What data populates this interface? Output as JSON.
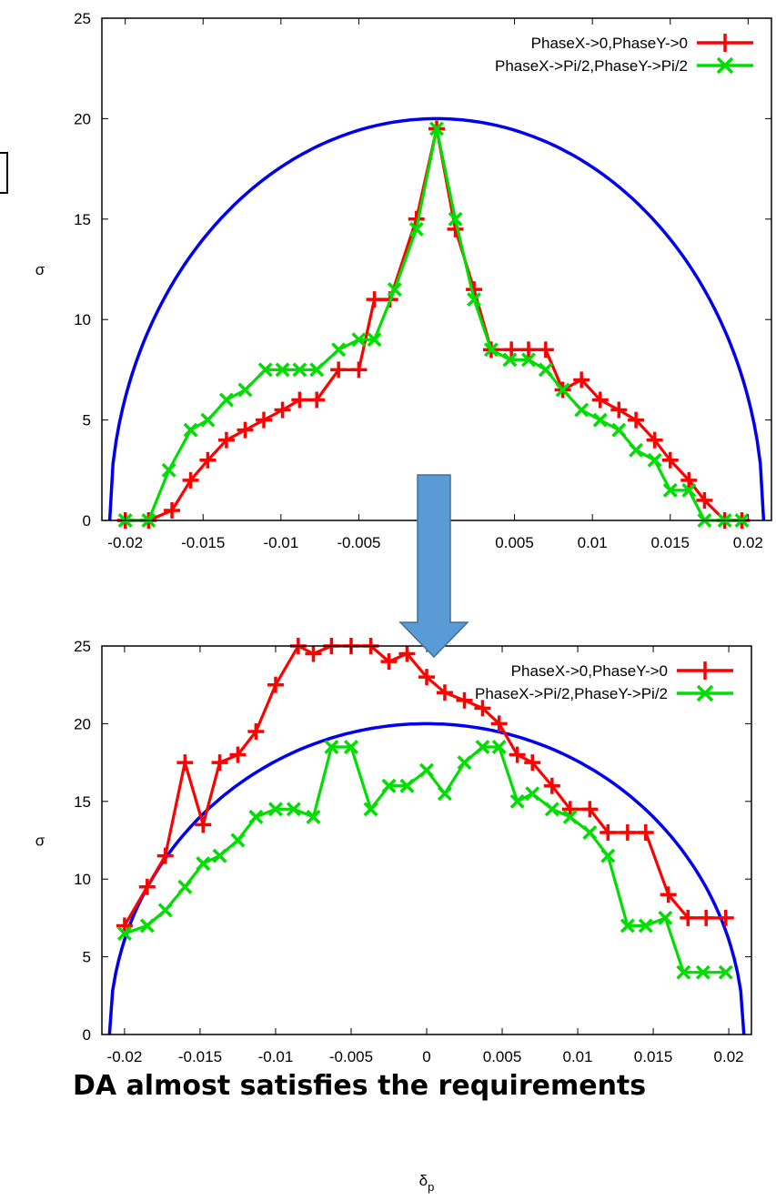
{
  "chart_data": [
    {
      "type": "line",
      "xlabel": "",
      "ylabel": "σ",
      "xlim": [
        -0.0215,
        0.0215
      ],
      "ylim": [
        0,
        25
      ],
      "x_ticks": [
        -0.02,
        -0.015,
        -0.01,
        -0.005,
        0.005,
        0.01,
        0.015,
        0.02
      ],
      "x_tick_labels": [
        "-0.02",
        "-0.015",
        "-0.01",
        "-0.005",
        "0.005",
        "0.01",
        "0.015",
        "0.02"
      ],
      "y_ticks": [
        0,
        5,
        10,
        15,
        20,
        25
      ],
      "y_tick_labels": [
        "0",
        "5",
        "10",
        "15",
        "20",
        "25"
      ],
      "grid": false,
      "legend_position": "top-right",
      "reference_curve": {
        "shape": "half-ellipse",
        "color": "#0000ee",
        "x_half_width": 0.021,
        "peak": 20
      },
      "series": [
        {
          "name": "PhaseX->0,PhaseY->0",
          "color": "#ff0000",
          "marker": "plus",
          "x": [
            -0.02,
            -0.0185,
            -0.017,
            -0.0158,
            -0.0147,
            -0.0135,
            -0.0123,
            -0.0111,
            -0.0099,
            -0.0088,
            -0.0077,
            -0.0063,
            -0.005,
            -0.004,
            -0.003,
            -0.0013,
            0.0,
            0.0012,
            0.0024,
            0.0035,
            0.0048,
            0.0059,
            0.007,
            0.0081,
            0.0093,
            0.0105,
            0.0117,
            0.0128,
            0.014,
            0.015,
            0.0162,
            0.0172,
            0.0185,
            0.0196
          ],
          "y": [
            0,
            0,
            0.5,
            2,
            3,
            4,
            4.5,
            5,
            5.5,
            6,
            6,
            7.5,
            7.5,
            11,
            11,
            15,
            19.5,
            14.5,
            11.5,
            8.5,
            8.5,
            8.5,
            8.5,
            6.5,
            7,
            6,
            5.5,
            5,
            4,
            3,
            2,
            1,
            0,
            0
          ]
        },
        {
          "name": "PhaseX->Pi/2,PhaseY->Pi/2",
          "color": "#00dd00",
          "marker": "x",
          "x": [
            -0.02,
            -0.0185,
            -0.0172,
            -0.0158,
            -0.0147,
            -0.0135,
            -0.0123,
            -0.011,
            -0.0099,
            -0.0088,
            -0.0077,
            -0.0063,
            -0.005,
            -0.004,
            -0.0027,
            -0.0013,
            0.0,
            0.0012,
            0.0024,
            0.0035,
            0.0047,
            0.0059,
            0.007,
            0.0081,
            0.0093,
            0.0105,
            0.0117,
            0.0128,
            0.014,
            0.015,
            0.0162,
            0.0172,
            0.0185,
            0.0196
          ],
          "y": [
            0,
            0,
            2.5,
            4.5,
            5,
            6,
            6.5,
            7.5,
            7.5,
            7.5,
            7.5,
            8.5,
            9,
            9,
            11.5,
            14.5,
            19.5,
            15,
            11,
            8.5,
            8,
            8,
            7.5,
            6.5,
            5.5,
            5,
            4.5,
            3.5,
            3,
            1.5,
            1.5,
            0,
            0,
            0
          ]
        }
      ]
    },
    {
      "type": "line",
      "xlabel": "δp",
      "ylabel": "σ",
      "xlim": [
        -0.0215,
        0.0215
      ],
      "ylim": [
        0,
        25
      ],
      "x_ticks": [
        -0.02,
        -0.015,
        -0.01,
        -0.005,
        0,
        0.005,
        0.01,
        0.015,
        0.02
      ],
      "x_tick_labels": [
        "-0.02",
        "-0.015",
        "-0.01",
        "-0.005",
        "0",
        "0.005",
        "0.01",
        "0.015",
        "0.02"
      ],
      "y_ticks": [
        0,
        5,
        10,
        15,
        20,
        25
      ],
      "y_tick_labels": [
        "0",
        "5",
        "10",
        "15",
        "20",
        "25"
      ],
      "grid": false,
      "legend_position": "top-right",
      "reference_curve": {
        "shape": "half-ellipse",
        "color": "#0000ee",
        "x_half_width": 0.021,
        "peak": 20
      },
      "series": [
        {
          "name": "PhaseX->0,PhaseY->0",
          "color": "#ff0000",
          "marker": "plus",
          "x": [
            -0.02,
            -0.0185,
            -0.0173,
            -0.016,
            -0.0148,
            -0.0137,
            -0.0125,
            -0.0113,
            -0.01,
            -0.0085,
            -0.0075,
            -0.0063,
            -0.005,
            -0.0037,
            -0.0025,
            -0.0013,
            0.0,
            0.0012,
            0.0025,
            0.0037,
            0.0048,
            0.006,
            0.007,
            0.0083,
            0.0095,
            0.0108,
            0.012,
            0.0133,
            0.0145,
            0.016,
            0.0173,
            0.0185,
            0.0198
          ],
          "y": [
            7,
            9.5,
            11.5,
            17.5,
            13.5,
            17.5,
            18,
            19.5,
            22.5,
            25,
            24.5,
            25,
            25,
            25,
            24,
            24.5,
            23,
            22,
            21.5,
            21,
            20,
            18,
            17.5,
            16,
            14.5,
            14.5,
            13,
            13,
            13,
            9,
            7.5,
            7.5,
            7.5
          ]
        },
        {
          "name": "PhaseX->Pi/2,PhaseY->Pi/2",
          "color": "#00dd00",
          "marker": "x",
          "x": [
            -0.02,
            -0.0185,
            -0.0173,
            -0.016,
            -0.0148,
            -0.0137,
            -0.0125,
            -0.0113,
            -0.01,
            -0.0088,
            -0.0075,
            -0.0063,
            -0.005,
            -0.0037,
            -0.0025,
            -0.0013,
            0.0,
            0.0012,
            0.0025,
            0.0037,
            0.0048,
            0.006,
            0.007,
            0.0083,
            0.0095,
            0.0108,
            0.012,
            0.0133,
            0.0145,
            0.0158,
            0.017,
            0.0183,
            0.0198
          ],
          "y": [
            6.5,
            7,
            8,
            9.5,
            11,
            11.5,
            12.5,
            14,
            14.5,
            14.5,
            14,
            18.5,
            18.5,
            14.5,
            16,
            16,
            17,
            15.5,
            17.5,
            18.5,
            18.5,
            15,
            15.5,
            14.5,
            14,
            13,
            11.5,
            7,
            7,
            7.5,
            4,
            4,
            4
          ]
        }
      ]
    }
  ],
  "caption": "DA almost satisfies the requirements",
  "colors": {
    "arrow_fill": "#5b9bd5",
    "arrow_stroke": "#41719c",
    "axis": "#000000"
  }
}
